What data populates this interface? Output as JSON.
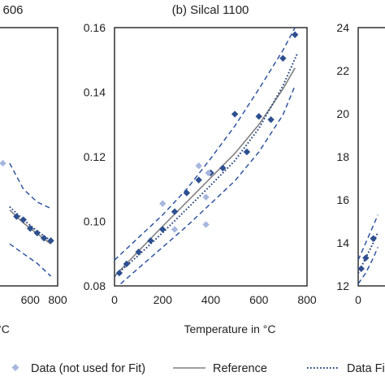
{
  "chart_data": [
    {
      "type": "scatter",
      "title": "606",
      "xlabel": "°C",
      "xlim": [
        0,
        800
      ],
      "x_ticks": [
        "600",
        "800"
      ],
      "ylim": [
        0.08,
        0.16
      ],
      "y_ticks": [],
      "series": [
        {
          "role": "data",
          "x": [
            500,
            550,
            600,
            650,
            700,
            750
          ],
          "y": [
            0.1015,
            0.1005,
            0.0978,
            0.0964,
            0.0948,
            0.094
          ]
        },
        {
          "role": "data-not-used",
          "x": [
            400
          ],
          "y": [
            0.118
          ]
        },
        {
          "role": "reference",
          "x": [
            450,
            550,
            650,
            750
          ],
          "y": [
            0.1035,
            0.0995,
            0.0962,
            0.093
          ]
        },
        {
          "role": "fit",
          "x": [
            450,
            550,
            650,
            750
          ],
          "y": [
            0.1045,
            0.1005,
            0.097,
            0.094
          ]
        },
        {
          "role": "band-upper",
          "x": [
            450,
            550,
            650,
            750
          ],
          "y": [
            0.118,
            0.11,
            0.106,
            0.104
          ]
        },
        {
          "role": "band-lower",
          "x": [
            450,
            550,
            650,
            750
          ],
          "y": [
            0.093,
            0.09,
            0.087,
            0.083
          ]
        }
      ]
    },
    {
      "type": "scatter",
      "title": "(b) Silcal 1100",
      "xlabel": "Temperature in °C",
      "xlim": [
        0,
        800
      ],
      "x_ticks": [
        "0",
        "200",
        "400",
        "600",
        "800"
      ],
      "ylim": [
        0.08,
        0.16
      ],
      "y_ticks": [
        "0.08",
        "0.10",
        "0.12",
        "0.14",
        "0.16"
      ],
      "series": [
        {
          "role": "data",
          "x": [
            20,
            50,
            100,
            150,
            200,
            250,
            300,
            350,
            400,
            450,
            500,
            550,
            600,
            650,
            700,
            750
          ],
          "y": [
            0.084,
            0.0868,
            0.0905,
            0.094,
            0.0975,
            0.103,
            0.1088,
            0.1128,
            0.115,
            0.1165,
            0.1332,
            0.1215,
            0.1325,
            0.1315,
            0.1505,
            0.1578
          ]
        },
        {
          "role": "data-not-used",
          "x": [
            200,
            250,
            350,
            380,
            380,
            390
          ],
          "y": [
            0.1055,
            0.0975,
            0.1172,
            0.099,
            0.1075,
            0.115
          ]
        },
        {
          "role": "reference",
          "x": [
            0,
            100,
            200,
            300,
            400,
            500,
            600,
            700,
            750
          ],
          "y": [
            0.083,
            0.0908,
            0.0985,
            0.106,
            0.1135,
            0.121,
            0.13,
            0.141,
            0.1475
          ]
        },
        {
          "role": "fit",
          "x": [
            0,
            100,
            200,
            300,
            400,
            500,
            600,
            700,
            760
          ],
          "y": [
            0.083,
            0.0895,
            0.0965,
            0.1038,
            0.1112,
            0.1188,
            0.1288,
            0.142,
            0.152
          ]
        },
        {
          "role": "band-upper",
          "x": [
            0,
            100,
            200,
            300,
            400,
            500,
            600,
            700,
            750
          ],
          "y": [
            0.088,
            0.095,
            0.102,
            0.11,
            0.1195,
            0.1295,
            0.141,
            0.153,
            0.16
          ]
        },
        {
          "role": "band-lower",
          "x": [
            0,
            100,
            200,
            300,
            400,
            500,
            600,
            700,
            750
          ],
          "y": [
            0.079,
            0.0855,
            0.092,
            0.0985,
            0.1055,
            0.1125,
            0.1215,
            0.133,
            0.142
          ]
        }
      ]
    },
    {
      "type": "scatter",
      "title": "",
      "xlabel": "",
      "xlim": [
        0,
        800
      ],
      "x_ticks": [
        "0"
      ],
      "ylim": [
        12,
        24
      ],
      "y_ticks": [
        "12",
        "14",
        "16",
        "18",
        "20",
        "22",
        "24"
      ],
      "series": [
        {
          "role": "data",
          "x": [
            20,
            50,
            100
          ],
          "y": [
            12.8,
            13.3,
            14.2
          ]
        },
        {
          "role": "fit",
          "x": [
            0,
            50,
            100,
            130
          ],
          "y": [
            12.6,
            13.3,
            14.0,
            14.5
          ]
        },
        {
          "role": "band-upper",
          "x": [
            0,
            50,
            100,
            130
          ],
          "y": [
            13.2,
            14.0,
            14.8,
            15.3
          ]
        },
        {
          "role": "band-lower",
          "x": [
            0,
            50,
            100,
            130
          ],
          "y": [
            12.1,
            12.6,
            13.3,
            13.8
          ]
        }
      ]
    }
  ],
  "legend": {
    "placement": "bottom",
    "items": [
      {
        "marker": "diamond-light",
        "label": "Data (not used for Fit)"
      },
      {
        "marker": "solid-line",
        "label": "Reference"
      },
      {
        "marker": "dotted-line",
        "label": "Data Fit"
      }
    ]
  },
  "colors": {
    "data": "#2e4f8f",
    "data_not_used": "#a7b7dd",
    "reference": "#808080",
    "fit": "#1f3f7a",
    "band": "#2f55a0",
    "axis": "#222222"
  }
}
